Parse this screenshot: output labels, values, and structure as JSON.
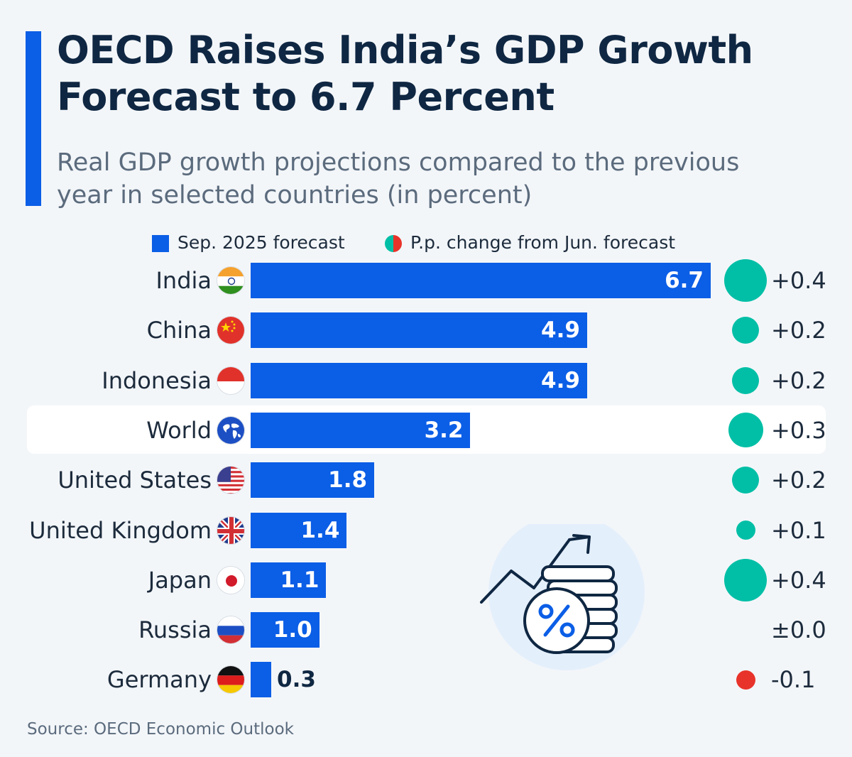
{
  "title": "OECD Raises India’s GDP Growth Forecast to 6.7 Percent",
  "subtitle": "Real GDP growth projections compared to the previous year in selected countries (in percent)",
  "legend": {
    "forecast": "Sep. 2025 forecast",
    "change": "P.p. change from Jun. forecast"
  },
  "source": "Source: OECD Economic Outlook",
  "colors": {
    "bar": "#0b5ee6",
    "positive": "#00bfa6",
    "negative": "#e8332a",
    "title": "#0f2742"
  },
  "chart_data": {
    "type": "bar",
    "orientation": "horizontal",
    "title": "OECD Raises India’s GDP Growth Forecast to 6.7 Percent",
    "xlabel": "",
    "ylabel": "",
    "xlim": [
      0,
      6.7
    ],
    "highlight": "World",
    "categories": [
      "India",
      "China",
      "Indonesia",
      "World",
      "United States",
      "United Kingdom",
      "Japan",
      "Russia",
      "Germany"
    ],
    "flags": [
      "india-flag-icon",
      "china-flag-icon",
      "indonesia-flag-icon",
      "globe-icon",
      "us-flag-icon",
      "uk-flag-icon",
      "japan-flag-icon",
      "russia-flag-icon",
      "germany-flag-icon"
    ],
    "series": [
      {
        "name": "Sep. 2025 forecast",
        "values": [
          6.7,
          4.9,
          4.9,
          3.2,
          1.8,
          1.4,
          1.1,
          1.0,
          0.3
        ],
        "labels": [
          "6.7",
          "4.9",
          "4.9",
          "3.2",
          "1.8",
          "1.4",
          "1.1",
          "1.0",
          "0.3"
        ]
      },
      {
        "name": "P.p. change from Jun. forecast",
        "values": [
          0.4,
          0.2,
          0.2,
          0.3,
          0.2,
          0.1,
          0.4,
          0.0,
          -0.1
        ],
        "labels": [
          "+0.4",
          "+0.2",
          "+0.2",
          "+0.3",
          "+0.2",
          "+0.1",
          "+0.4",
          "±0.0",
          "-0.1"
        ]
      }
    ]
  }
}
